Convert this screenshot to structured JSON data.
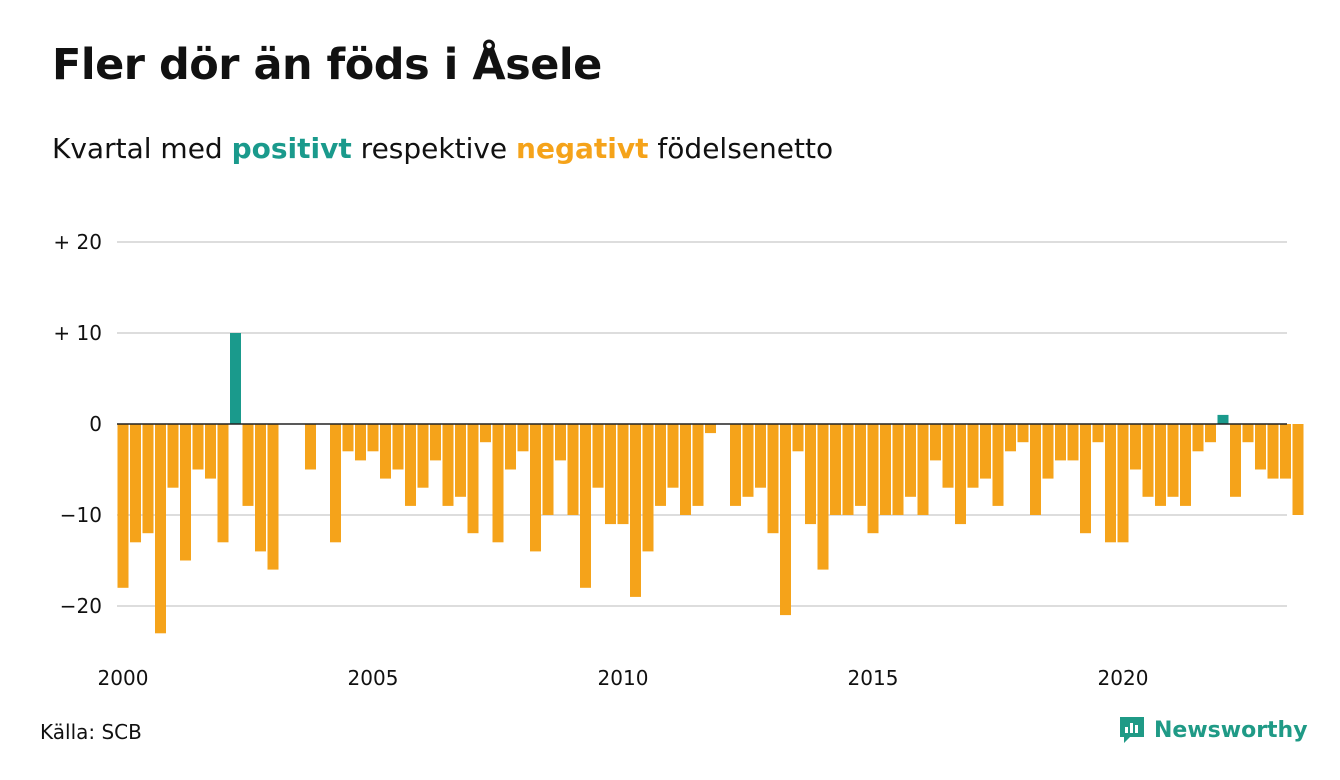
{
  "title": "Fler dör än föds i Åsele",
  "subtitle": {
    "part1": "Kvartal med ",
    "positive": "positivt",
    "part2": " respektive ",
    "negative": "negativt",
    "part3": " födelsenetto"
  },
  "source": "Källa: SCB",
  "brand": "Newsworthy",
  "colors": {
    "positive": "#1a9a8c",
    "negative": "#f5a31a",
    "grid": "#dddddd",
    "brand": "#1f9a86"
  },
  "chart_data": {
    "type": "bar",
    "x_start": 2000,
    "periods_per_year": 4,
    "values": [
      -18,
      -13,
      -12,
      -23,
      -7,
      -15,
      -5,
      -6,
      -13,
      10,
      -9,
      -14,
      -16,
      0,
      0,
      -5,
      0,
      -13,
      -3,
      -4,
      -3,
      -6,
      -5,
      -9,
      -7,
      -4,
      -9,
      -8,
      -12,
      -2,
      -13,
      -5,
      -3,
      -14,
      -10,
      -4,
      -10,
      -18,
      -7,
      -11,
      -11,
      -19,
      -14,
      -9,
      -7,
      -10,
      -9,
      -1,
      0,
      -9,
      -8,
      -7,
      -12,
      -21,
      -3,
      -11,
      -16,
      -10,
      -10,
      -9,
      -12,
      -10,
      -10,
      -8,
      -10,
      -4,
      -7,
      -11,
      -7,
      -6,
      -9,
      -3,
      -2,
      -10,
      -6,
      -4,
      -4,
      -12,
      -2,
      -13,
      -13,
      -5,
      -8,
      -9,
      -8,
      -9,
      -3,
      -2,
      1,
      -8,
      -2,
      -5,
      -6,
      -6,
      -10
    ],
    "ylim": [
      -25,
      22
    ],
    "y_ticks": [
      {
        "value": 20,
        "label": "+ 20"
      },
      {
        "value": 10,
        "label": "+ 10"
      },
      {
        "value": 0,
        "label": "0"
      },
      {
        "value": -10,
        "label": "−10"
      },
      {
        "value": -20,
        "label": "−20"
      }
    ],
    "x_ticks": [
      {
        "value": 2000,
        "label": "2000"
      },
      {
        "value": 2005,
        "label": "2005"
      },
      {
        "value": 2010,
        "label": "2010"
      },
      {
        "value": 2015,
        "label": "2015"
      },
      {
        "value": 2020,
        "label": "2020"
      }
    ],
    "grid": true
  }
}
